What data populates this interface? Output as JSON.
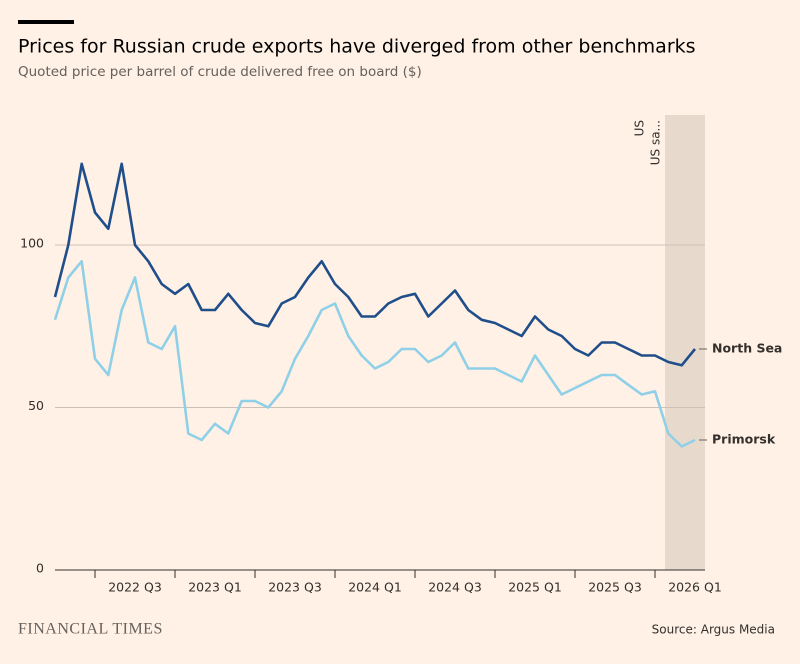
{
  "chart_data": {
    "type": "line",
    "title": "Prices for Russian crude exports have diverged from other benchmarks",
    "subtitle": "Quoted price per barrel of crude delivered free on board ($)",
    "source": "Source: Argus Media",
    "brand": "FINANCIAL TIMES",
    "annotations": [
      "US",
      "US sa..."
    ],
    "x": [
      null,
      null,
      null,
      "2022 Q3",
      null,
      null,
      null,
      null,
      null,
      "2023 Q1",
      null,
      null,
      null,
      null,
      null,
      "2023 Q3",
      null,
      null,
      null,
      null,
      null,
      "2024 Q1",
      null,
      null,
      null,
      null,
      null,
      "2024 Q3",
      null,
      null,
      null,
      null,
      null,
      "2025 Q1",
      null,
      null,
      null,
      null,
      null,
      "2025 Q3",
      null,
      null,
      null,
      null,
      null,
      "2026 Q1",
      null,
      null,
      null
    ],
    "series": [
      {
        "name": "North Sea",
        "color": "#1f4e8a",
        "values": [
          84,
          100,
          125,
          110,
          105,
          125,
          100,
          95,
          88,
          85,
          88,
          80,
          80,
          85,
          80,
          76,
          75,
          82,
          84,
          90,
          95,
          88,
          84,
          78,
          78,
          82,
          84,
          85,
          78,
          82,
          86,
          80,
          77,
          76,
          74,
          72,
          78,
          74,
          72,
          68,
          66,
          70,
          70,
          68,
          66,
          66,
          64,
          63,
          68
        ]
      },
      {
        "name": "Primorsk",
        "color": "#8fd0e8",
        "values": [
          77,
          90,
          95,
          65,
          60,
          80,
          90,
          70,
          68,
          75,
          42,
          40,
          45,
          42,
          52,
          52,
          50,
          55,
          65,
          72,
          80,
          82,
          72,
          66,
          62,
          64,
          68,
          68,
          64,
          66,
          70,
          62,
          62,
          62,
          60,
          58,
          66,
          60,
          54,
          56,
          58,
          60,
          60,
          57,
          54,
          55,
          42,
          38,
          40
        ]
      }
    ],
    "ylim": [
      0,
      140
    ],
    "yticks": [
      0,
      50,
      100
    ],
    "grid": true
  }
}
